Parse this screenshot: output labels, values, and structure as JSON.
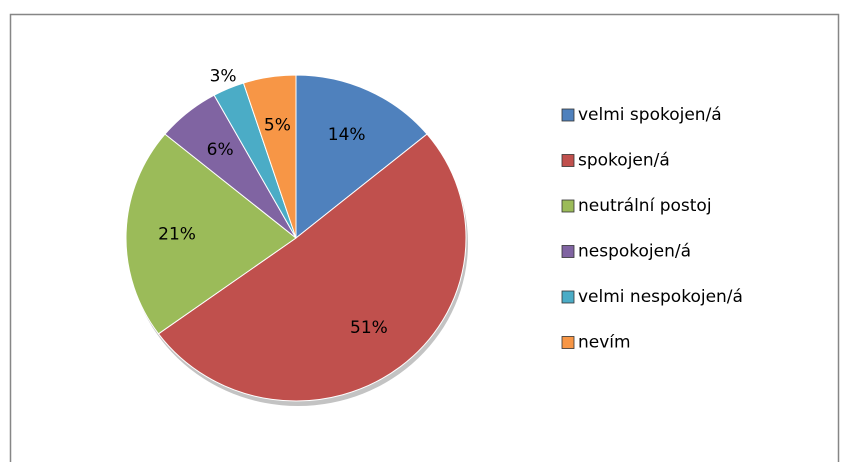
{
  "chart_data": {
    "type": "pie",
    "categories": [
      "velmi spokojen/á",
      "spokojen/á",
      "neutrální postoj",
      "nespokojen/á",
      "velmi nespokojen/á",
      "nevím"
    ],
    "values": [
      14,
      51,
      21,
      6,
      3,
      5
    ],
    "value_labels": [
      "14%",
      "51%",
      "21%",
      "6%",
      "3%",
      "5%"
    ],
    "colors": [
      "#4f81bd",
      "#c0504d",
      "#9bbb59",
      "#8064a2",
      "#4bacc6",
      "#f79646"
    ],
    "legend": "right"
  }
}
